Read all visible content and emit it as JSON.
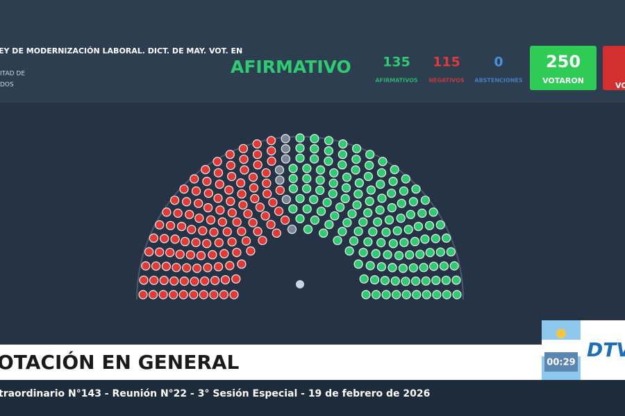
{
  "header": {
    "title": "EY DE MODERNIZACIÓN LABORAL. DICT. DE MAY. VOT. EN",
    "chamber_lines": [
      "ITAD DE",
      "DOS"
    ],
    "result": "AFIRMATIVO"
  },
  "tallies": [
    {
      "value": 135,
      "label": "AFIRMATIVOS",
      "color": "#2ecc71"
    },
    {
      "value": 115,
      "label": "NEGATIVOS",
      "color": "#e53935"
    },
    {
      "value": 0,
      "label": "ABSTENCIONES",
      "color": "#4a90d9"
    }
  ],
  "voted": {
    "value": 250,
    "label": "VOTARON"
  },
  "cut_box": {
    "label": "VO"
  },
  "footer": {
    "title": "OTACIÓN EN GENERAL",
    "subtitle": "traordinario N°143 - Reunión N°22 - 3° Sesión Especial - 19 de febrero de 2026"
  },
  "timer": "00:29",
  "logo": "DTV"
}
